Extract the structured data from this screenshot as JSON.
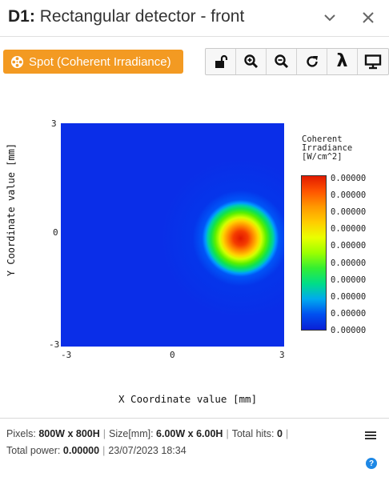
{
  "window": {
    "title_prefix": "D1:",
    "title_text": "Rectangular detector - front",
    "icons": [
      "chevron-down-icon",
      "close-icon"
    ]
  },
  "toolbar": {
    "spot_label": "Spot (Coherent Irradiance)",
    "tools": [
      "unlock-icon",
      "zoom-in-icon",
      "zoom-out-icon",
      "refresh-icon",
      "lambda-icon",
      "monitor-icon"
    ],
    "lambda_symbol": "λ"
  },
  "chart_data": {
    "type": "heatmap",
    "xlabel": "X Coordinate value [mm]",
    "ylabel": "Y Coordinate value [mm]",
    "x_ticks": [
      "-3",
      "0",
      "3"
    ],
    "y_ticks": [
      "3",
      "0",
      "-3"
    ],
    "xlim": [
      -3,
      3
    ],
    "ylim": [
      -3,
      3
    ],
    "spot_center": {
      "x": 1.8,
      "y": 0
    },
    "colorbar": {
      "title": "Coherent\nIrradiance\n[W/cm^2]",
      "ticks": [
        "0.00000",
        "0.00000",
        "0.00000",
        "0.00000",
        "0.00000",
        "0.00000",
        "0.00000",
        "0.00000",
        "0.00000",
        "0.00000"
      ],
      "colors": [
        "#e11a00",
        "#ff9900",
        "#eaff00",
        "#33ee33",
        "#00aaee",
        "#0a1fd6"
      ]
    }
  },
  "status": {
    "pixels_label": "Pixels:",
    "pixels_value": "800W x 800H",
    "size_label": "Size[mm]:",
    "size_value": "6.00W x 6.00H",
    "hits_label": "Total hits:",
    "hits_value": "0",
    "power_label": "Total power:",
    "power_value": "0.00000",
    "timestamp": "23/07/2023 18:34",
    "help_symbol": "?"
  }
}
